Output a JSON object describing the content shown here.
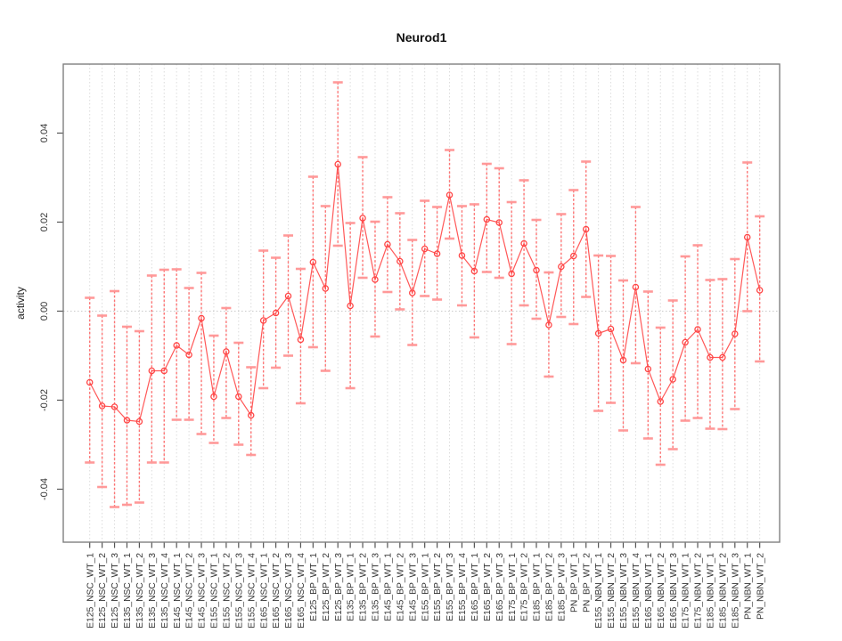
{
  "chart_data": {
    "type": "scatter",
    "title": "Neurod1",
    "ylabel": "activity",
    "xlabel": "",
    "legend": "none",
    "grid": "vertical dotted gridline at each category; dotted horizontal line at 0",
    "ylim": [
      -0.052,
      0.0555
    ],
    "yticks": [
      -0.04,
      -0.02,
      0,
      0.02,
      0.04
    ],
    "ytick_labels": [
      "-0.04",
      "-0.02",
      "0.00",
      "0.02",
      "0.04"
    ],
    "zero_line": 0,
    "point_color": "#ff4646",
    "line_color": "#ff4646",
    "errorbar_color": "#ff5f5f",
    "cap_color": "#ff9494",
    "gridline_color": "#dcdcdc",
    "axis_color": "#7f7f7f",
    "categories": [
      "E125_NSC_WT_1",
      "E125_NSC_WT_2",
      "E125_NSC_WT_3",
      "E135_NSC_WT_1",
      "E135_NSC_WT_2",
      "E135_NSC_WT_3",
      "E135_NSC_WT_4",
      "E145_NSC_WT_1",
      "E145_NSC_WT_2",
      "E145_NSC_WT_3",
      "E155_NSC_WT_1",
      "E155_NSC_WT_2",
      "E155_NSC_WT_3",
      "E155_NSC_WT_4",
      "E165_NSC_WT_1",
      "E165_NSC_WT_2",
      "E165_NSC_WT_3",
      "E165_NSC_WT_4",
      "E125_BP_WT_1",
      "E125_BP_WT_2",
      "E125_BP_WT_3",
      "E135_BP_WT_1",
      "E135_BP_WT_2",
      "E135_BP_WT_3",
      "E145_BP_WT_1",
      "E145_BP_WT_2",
      "E145_BP_WT_3",
      "E155_BP_WT_1",
      "E155_BP_WT_2",
      "E155_BP_WT_3",
      "E155_BP_WT_4",
      "E165_BP_WT_1",
      "E165_BP_WT_2",
      "E165_BP_WT_3",
      "E175_BP_WT_1",
      "E175_BP_WT_2",
      "E185_BP_WT_1",
      "E185_BP_WT_2",
      "E185_BP_WT_3",
      "PN_BP_WT_1",
      "PN_BP_WT_2",
      "E155_NBN_WT_1",
      "E155_NBN_WT_2",
      "E155_NBN_WT_3",
      "E155_NBN_WT_4",
      "E165_NBN_WT_1",
      "E165_NBN_WT_2",
      "E165_NBN_WT_3",
      "E175_NBN_WT_1",
      "E175_NBN_WT_2",
      "E185_NBN_WT_1",
      "E185_NBN_WT_2",
      "E185_NBN_WT_3",
      "PN_NBN_WT_1",
      "PN_NBN_WT_2"
    ],
    "series": [
      {
        "name": "activity",
        "values": [
          -0.016,
          -0.0213,
          -0.0215,
          -0.0245,
          -0.0248,
          -0.0134,
          -0.0134,
          -0.0077,
          -0.0098,
          -0.0016,
          -0.0192,
          -0.0091,
          -0.0192,
          -0.0234,
          -0.0021,
          -0.0004,
          0.0034,
          -0.0064,
          0.011,
          0.0051,
          0.033,
          0.0012,
          0.0209,
          0.0071,
          0.015,
          0.0112,
          0.0041,
          0.014,
          0.0129,
          0.0261,
          0.0125,
          0.009,
          0.0206,
          0.0199,
          0.0084,
          0.0152,
          0.0092,
          -0.0031,
          0.01,
          0.0124,
          0.0184,
          -0.005,
          -0.004,
          -0.011,
          0.0054,
          -0.013,
          -0.0203,
          -0.0153,
          -0.007,
          -0.0041,
          -0.0104,
          -0.0104,
          -0.0051,
          0.0166,
          0.0047
        ],
        "error_low": [
          -0.034,
          -0.0395,
          -0.044,
          -0.0435,
          -0.043,
          -0.034,
          -0.034,
          -0.0244,
          -0.0244,
          -0.0276,
          -0.0296,
          -0.024,
          -0.03,
          -0.0323,
          -0.0173,
          -0.0127,
          -0.01,
          -0.0207,
          -0.0081,
          -0.0134,
          0.0147,
          -0.0173,
          0.0075,
          -0.0057,
          0.0043,
          0.0004,
          -0.0076,
          0.0034,
          0.0026,
          0.0163,
          0.0013,
          -0.0059,
          0.0088,
          0.0075,
          -0.0074,
          0.0013,
          -0.0017,
          -0.0147,
          -0.0013,
          -0.0029,
          0.0032,
          -0.0224,
          -0.0206,
          -0.0268,
          -0.0117,
          -0.0286,
          -0.0345,
          -0.031,
          -0.0246,
          -0.024,
          -0.0264,
          -0.0265,
          -0.022,
          0.0,
          -0.0113
        ],
        "error_high": [
          0.003,
          -0.001,
          0.0045,
          -0.0035,
          -0.0045,
          0.008,
          0.0093,
          0.0094,
          0.0052,
          0.0086,
          -0.0055,
          0.0007,
          -0.0071,
          -0.0126,
          0.0136,
          0.012,
          0.017,
          0.0095,
          0.0302,
          0.0236,
          0.0514,
          0.0198,
          0.0346,
          0.0201,
          0.0256,
          0.022,
          0.016,
          0.0248,
          0.0234,
          0.0362,
          0.0236,
          0.024,
          0.0331,
          0.0321,
          0.0245,
          0.0294,
          0.0205,
          0.0087,
          0.0218,
          0.0272,
          0.0336,
          0.0125,
          0.0124,
          0.0069,
          0.0234,
          0.0044,
          -0.0037,
          0.0024,
          0.0123,
          0.0148,
          0.007,
          0.0072,
          0.0117,
          0.0334,
          0.0213
        ]
      }
    ]
  }
}
